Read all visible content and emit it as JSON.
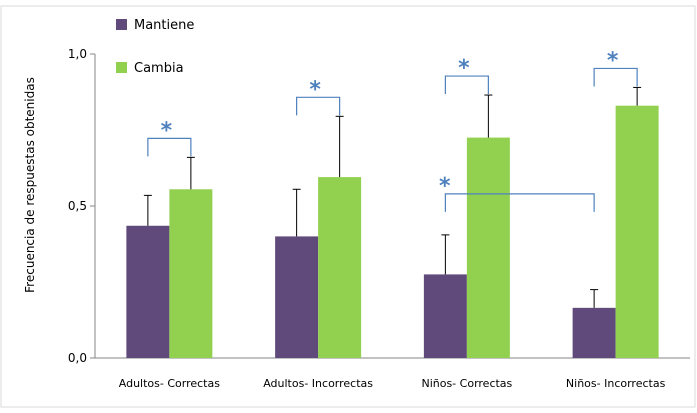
{
  "chart_data": {
    "type": "bar",
    "title": "",
    "xlabel": "",
    "ylabel": "Frecuencia de respuestas obtenidas",
    "ylim": [
      0,
      1.0
    ],
    "yticks": [
      {
        "value": 0.0,
        "label": "0,0"
      },
      {
        "value": 0.5,
        "label": "0,5"
      },
      {
        "value": 1.0,
        "label": "1,0"
      }
    ],
    "categories": [
      "Adultos- Correctas",
      "Adultos- Incorrectas",
      "Niños- Correctas",
      "Niños- Incorrectas"
    ],
    "series": [
      {
        "name": "Mantiene",
        "color": "#604a7b",
        "values": [
          0.435,
          0.4,
          0.275,
          0.165
        ],
        "error": [
          0.1,
          0.155,
          0.13,
          0.06
        ]
      },
      {
        "name": "Cambia",
        "color": "#92d050",
        "values": [
          0.555,
          0.595,
          0.725,
          0.83
        ],
        "error": [
          0.105,
          0.2,
          0.14,
          0.06
        ]
      }
    ],
    "legend": "top-left, inside plot",
    "grid": false,
    "significance": [
      {
        "label": "*",
        "from": [
          0,
          0
        ],
        "to": [
          0,
          1
        ]
      },
      {
        "label": "*",
        "from": [
          1,
          0
        ],
        "to": [
          1,
          1
        ]
      },
      {
        "label": "*",
        "from": [
          2,
          0
        ],
        "to": [
          2,
          1
        ]
      },
      {
        "label": "*",
        "from": [
          3,
          0
        ],
        "to": [
          3,
          1
        ]
      },
      {
        "label": "*",
        "from": [
          2,
          0
        ],
        "to": [
          3,
          0
        ]
      }
    ],
    "significance_color": "#4f81bd"
  }
}
